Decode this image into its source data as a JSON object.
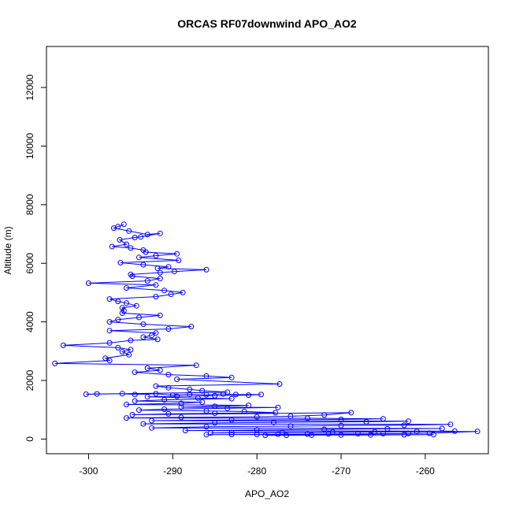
{
  "chart_data": {
    "type": "line",
    "title": "ORCAS RF07downwind APO_AO2",
    "xlabel": "APO_AO2",
    "ylabel": "Altitude (m)",
    "xlim": [
      -305,
      -252.5
    ],
    "ylim": [
      -500,
      13400
    ],
    "xticks": [
      -300,
      -290,
      -280,
      -270,
      -260
    ],
    "yticks": [
      0,
      2000,
      4000,
      6000,
      8000,
      10000,
      12000
    ],
    "grid": false,
    "legend": "none",
    "series": [
      {
        "color": "#0000ff",
        "marker": "open-circle",
        "points": [
          [
            -296.5,
            7250
          ],
          [
            -295.8,
            7330
          ],
          [
            -297.0,
            7200
          ],
          [
            -295.2,
            7100
          ],
          [
            -293.0,
            6980
          ],
          [
            -291.5,
            7020
          ],
          [
            -293.8,
            6900
          ],
          [
            -294.5,
            6880
          ],
          [
            -296.3,
            6800
          ],
          [
            -295.5,
            6650
          ],
          [
            -297.2,
            6570
          ],
          [
            -295.0,
            6520
          ],
          [
            -293.5,
            6450
          ],
          [
            -293.2,
            6380
          ],
          [
            -289.5,
            6320
          ],
          [
            -292.0,
            6260
          ],
          [
            -294.0,
            6200
          ],
          [
            -289.3,
            6100
          ],
          [
            -296.2,
            6020
          ],
          [
            -293.5,
            5950
          ],
          [
            -290.5,
            5880
          ],
          [
            -291.8,
            5830
          ],
          [
            -286.0,
            5780
          ],
          [
            -289.8,
            5720
          ],
          [
            -291.5,
            5680
          ],
          [
            -295.0,
            5620
          ],
          [
            -294.8,
            5560
          ],
          [
            -291.5,
            5480
          ],
          [
            -293.0,
            5400
          ],
          [
            -300.0,
            5320
          ],
          [
            -292.0,
            5260
          ],
          [
            -295.5,
            5160
          ],
          [
            -291.0,
            5070
          ],
          [
            -288.8,
            5000
          ],
          [
            -290.2,
            4940
          ],
          [
            -292.0,
            4860
          ],
          [
            -297.5,
            4780
          ],
          [
            -296.5,
            4700
          ],
          [
            -295.5,
            4640
          ],
          [
            -294.3,
            4550
          ],
          [
            -296.0,
            4480
          ],
          [
            -295.8,
            4380
          ],
          [
            -296.0,
            4300
          ],
          [
            -291.5,
            4220
          ],
          [
            -294.0,
            4150
          ],
          [
            -296.5,
            4080
          ],
          [
            -297.5,
            4000
          ],
          [
            -293.5,
            3920
          ],
          [
            -287.8,
            3840
          ],
          [
            -290.5,
            3760
          ],
          [
            -297.5,
            3700
          ],
          [
            -292.0,
            3620
          ],
          [
            -292.5,
            3540
          ],
          [
            -293.5,
            3480
          ],
          [
            -291.8,
            3400
          ],
          [
            -295.0,
            3370
          ],
          [
            -297.5,
            3280
          ],
          [
            -303.0,
            3200
          ],
          [
            -296.5,
            3120
          ],
          [
            -295.0,
            3050
          ],
          [
            -296.0,
            2980
          ],
          [
            -295.2,
            2880
          ],
          [
            -298.0,
            2760
          ],
          [
            -297.5,
            2680
          ],
          [
            -304.0,
            2580
          ],
          [
            -287.2,
            2520
          ],
          [
            -293.0,
            2420
          ],
          [
            -291.5,
            2350
          ],
          [
            -294.5,
            2280
          ],
          [
            -290.5,
            2200
          ],
          [
            -286.0,
            2150
          ],
          [
            -283.0,
            2100
          ],
          [
            -289.5,
            2040
          ],
          [
            -277.3,
            1880
          ],
          [
            -292.0,
            1810
          ],
          [
            -290.5,
            1750
          ],
          [
            -288.0,
            1700
          ],
          [
            -286.5,
            1650
          ],
          [
            -283.5,
            1600
          ],
          [
            -300.3,
            1530
          ],
          [
            -299.0,
            1540
          ],
          [
            -296.0,
            1550
          ],
          [
            -294.5,
            1520
          ],
          [
            -292.0,
            1545
          ],
          [
            -290.0,
            1500
          ],
          [
            -288.0,
            1530
          ],
          [
            -286.0,
            1510
          ],
          [
            -284.0,
            1540
          ],
          [
            -282.5,
            1520
          ],
          [
            -279.5,
            1520
          ],
          [
            -281.0,
            1500
          ],
          [
            -285.0,
            1480
          ],
          [
            -289.5,
            1460
          ],
          [
            -293.0,
            1440
          ],
          [
            -287.0,
            1400
          ],
          [
            -283.0,
            1380
          ],
          [
            -291.0,
            1340
          ],
          [
            -294.5,
            1300
          ],
          [
            -286.5,
            1260
          ],
          [
            -289.0,
            1220
          ],
          [
            -295.5,
            1180
          ],
          [
            -281.0,
            1150
          ],
          [
            -285.0,
            1120
          ],
          [
            -289.0,
            1090
          ],
          [
            -277.5,
            1080
          ],
          [
            -283.5,
            1050
          ],
          [
            -291.0,
            1020
          ],
          [
            -294.0,
            990
          ],
          [
            -286.0,
            960
          ],
          [
            -281.5,
            940
          ],
          [
            -277.8,
            900
          ],
          [
            -285.0,
            880
          ],
          [
            -290.5,
            860
          ],
          [
            -294.8,
            830
          ],
          [
            -268.8,
            900
          ],
          [
            -272.0,
            820
          ],
          [
            -276.0,
            780
          ],
          [
            -280.0,
            760
          ],
          [
            -289.0,
            740
          ],
          [
            -295.5,
            720
          ],
          [
            -274.0,
            710
          ],
          [
            -265.0,
            690
          ],
          [
            -270.0,
            670
          ],
          [
            -283.0,
            650
          ],
          [
            -292.5,
            630
          ],
          [
            -262.0,
            610
          ],
          [
            -267.0,
            590
          ],
          [
            -278.0,
            570
          ],
          [
            -285.0,
            550
          ],
          [
            -293.5,
            520
          ],
          [
            -257.0,
            500
          ],
          [
            -262.5,
            470
          ],
          [
            -270.0,
            460
          ],
          [
            -276.0,
            440
          ],
          [
            -286.0,
            420
          ],
          [
            -292.5,
            380
          ],
          [
            -258.0,
            360
          ],
          [
            -264.5,
            350
          ],
          [
            -272.0,
            330
          ],
          [
            -280.0,
            310
          ],
          [
            -288.5,
            290
          ],
          [
            -256.5,
            270
          ],
          [
            -261.0,
            260
          ],
          [
            -266.0,
            250
          ],
          [
            -271.0,
            240
          ],
          [
            -277.0,
            230
          ],
          [
            -283.0,
            220
          ],
          [
            -285.5,
            210
          ],
          [
            -253.8,
            260
          ],
          [
            -259.5,
            200
          ],
          [
            -262.0,
            190
          ],
          [
            -265.0,
            185
          ],
          [
            -268.0,
            180
          ],
          [
            -271.5,
            175
          ],
          [
            -274.0,
            170
          ],
          [
            -277.5,
            165
          ],
          [
            -280.0,
            160
          ],
          [
            -283.0,
            155
          ],
          [
            -286.0,
            150
          ],
          [
            -259.0,
            150
          ],
          [
            -262.5,
            145
          ],
          [
            -266.5,
            140
          ],
          [
            -270.0,
            138
          ],
          [
            -273.5,
            135
          ],
          [
            -276.5,
            130
          ],
          [
            -279.0,
            130
          ]
        ]
      }
    ]
  }
}
